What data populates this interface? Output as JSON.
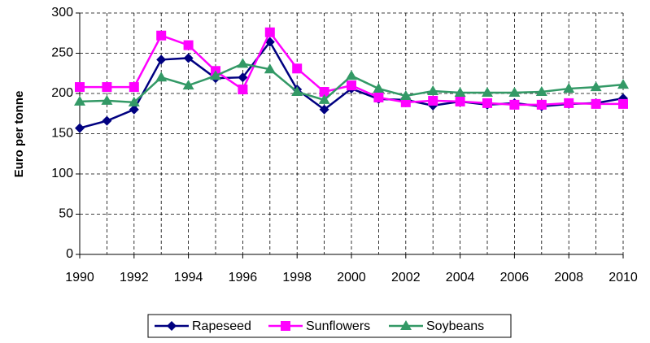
{
  "chart_data": {
    "type": "line",
    "y_label": "Euro per tonne",
    "x": [
      1990,
      1991,
      1992,
      1993,
      1994,
      1995,
      1996,
      1997,
      1998,
      1999,
      2000,
      2001,
      2002,
      2003,
      2004,
      2005,
      2006,
      2007,
      2008,
      2009,
      2010
    ],
    "series": [
      {
        "name": "Rapeseed",
        "color": "#000080",
        "marker": "diamond",
        "values": [
          157,
          166,
          180,
          242,
          244,
          219,
          220,
          264,
          205,
          180,
          206,
          193,
          192,
          185,
          190,
          186,
          188,
          184,
          187,
          188,
          194
        ]
      },
      {
        "name": "Sunflowers",
        "color": "#ff00ff",
        "marker": "square",
        "values": [
          208,
          208,
          208,
          272,
          260,
          228,
          205,
          276,
          231,
          202,
          210,
          195,
          189,
          191,
          190,
          188,
          186,
          186,
          188,
          187,
          187
        ]
      },
      {
        "name": "Soybeans",
        "color": "#339966",
        "marker": "triangle",
        "values": [
          190,
          191,
          189,
          220,
          210,
          222,
          237,
          230,
          202,
          192,
          222,
          206,
          197,
          203,
          201,
          201,
          201,
          202,
          206,
          208,
          211
        ]
      }
    ],
    "xlim": [
      1990,
      2010
    ],
    "xticks": [
      1990,
      1992,
      1994,
      1996,
      1998,
      2000,
      2002,
      2004,
      2006,
      2008,
      2010
    ],
    "ylim": [
      0,
      300
    ],
    "yticks": [
      0,
      50,
      100,
      150,
      200,
      250,
      300
    ],
    "grid": true,
    "legend": "bottom"
  }
}
